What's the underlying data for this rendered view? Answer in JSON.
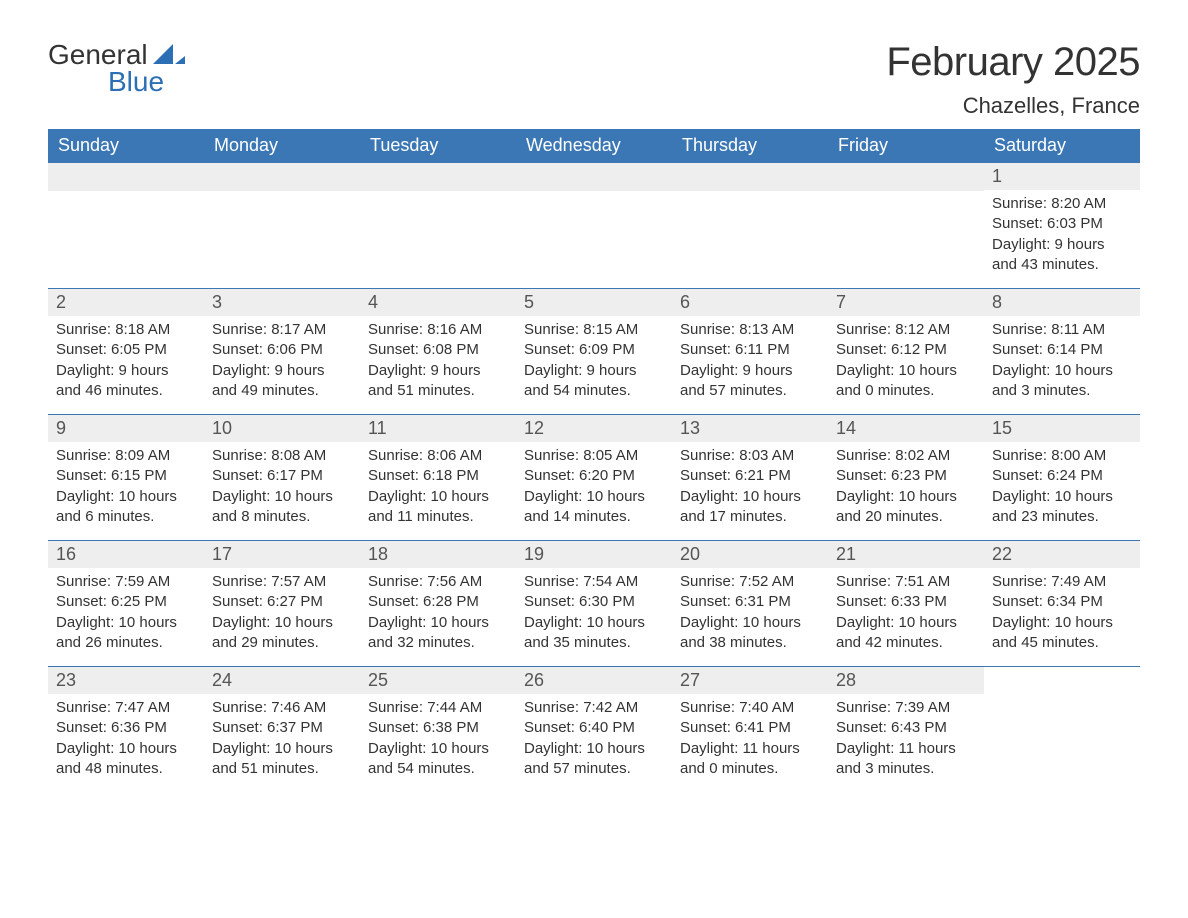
{
  "logo": {
    "general": "General",
    "blue": "Blue",
    "icon_color": "#2c6fb5"
  },
  "title": "February 2025",
  "location": "Chazelles, France",
  "colors": {
    "header_bg": "#3b77b5",
    "header_text": "#ffffff",
    "daynum_bg": "#eeeeee",
    "border": "#3b77b5",
    "text": "#333333",
    "background": "#ffffff"
  },
  "typography": {
    "title_fontsize": 40,
    "location_fontsize": 22,
    "header_fontsize": 18,
    "daynum_fontsize": 18,
    "body_fontsize": 15,
    "font_family": "Arial"
  },
  "weekdays": [
    "Sunday",
    "Monday",
    "Tuesday",
    "Wednesday",
    "Thursday",
    "Friday",
    "Saturday"
  ],
  "leading_blanks": 6,
  "days": [
    {
      "n": 1,
      "sunrise": "8:20 AM",
      "sunset": "6:03 PM",
      "daylight": "9 hours and 43 minutes."
    },
    {
      "n": 2,
      "sunrise": "8:18 AM",
      "sunset": "6:05 PM",
      "daylight": "9 hours and 46 minutes."
    },
    {
      "n": 3,
      "sunrise": "8:17 AM",
      "sunset": "6:06 PM",
      "daylight": "9 hours and 49 minutes."
    },
    {
      "n": 4,
      "sunrise": "8:16 AM",
      "sunset": "6:08 PM",
      "daylight": "9 hours and 51 minutes."
    },
    {
      "n": 5,
      "sunrise": "8:15 AM",
      "sunset": "6:09 PM",
      "daylight": "9 hours and 54 minutes."
    },
    {
      "n": 6,
      "sunrise": "8:13 AM",
      "sunset": "6:11 PM",
      "daylight": "9 hours and 57 minutes."
    },
    {
      "n": 7,
      "sunrise": "8:12 AM",
      "sunset": "6:12 PM",
      "daylight": "10 hours and 0 minutes."
    },
    {
      "n": 8,
      "sunrise": "8:11 AM",
      "sunset": "6:14 PM",
      "daylight": "10 hours and 3 minutes."
    },
    {
      "n": 9,
      "sunrise": "8:09 AM",
      "sunset": "6:15 PM",
      "daylight": "10 hours and 6 minutes."
    },
    {
      "n": 10,
      "sunrise": "8:08 AM",
      "sunset": "6:17 PM",
      "daylight": "10 hours and 8 minutes."
    },
    {
      "n": 11,
      "sunrise": "8:06 AM",
      "sunset": "6:18 PM",
      "daylight": "10 hours and 11 minutes."
    },
    {
      "n": 12,
      "sunrise": "8:05 AM",
      "sunset": "6:20 PM",
      "daylight": "10 hours and 14 minutes."
    },
    {
      "n": 13,
      "sunrise": "8:03 AM",
      "sunset": "6:21 PM",
      "daylight": "10 hours and 17 minutes."
    },
    {
      "n": 14,
      "sunrise": "8:02 AM",
      "sunset": "6:23 PM",
      "daylight": "10 hours and 20 minutes."
    },
    {
      "n": 15,
      "sunrise": "8:00 AM",
      "sunset": "6:24 PM",
      "daylight": "10 hours and 23 minutes."
    },
    {
      "n": 16,
      "sunrise": "7:59 AM",
      "sunset": "6:25 PM",
      "daylight": "10 hours and 26 minutes."
    },
    {
      "n": 17,
      "sunrise": "7:57 AM",
      "sunset": "6:27 PM",
      "daylight": "10 hours and 29 minutes."
    },
    {
      "n": 18,
      "sunrise": "7:56 AM",
      "sunset": "6:28 PM",
      "daylight": "10 hours and 32 minutes."
    },
    {
      "n": 19,
      "sunrise": "7:54 AM",
      "sunset": "6:30 PM",
      "daylight": "10 hours and 35 minutes."
    },
    {
      "n": 20,
      "sunrise": "7:52 AM",
      "sunset": "6:31 PM",
      "daylight": "10 hours and 38 minutes."
    },
    {
      "n": 21,
      "sunrise": "7:51 AM",
      "sunset": "6:33 PM",
      "daylight": "10 hours and 42 minutes."
    },
    {
      "n": 22,
      "sunrise": "7:49 AM",
      "sunset": "6:34 PM",
      "daylight": "10 hours and 45 minutes."
    },
    {
      "n": 23,
      "sunrise": "7:47 AM",
      "sunset": "6:36 PM",
      "daylight": "10 hours and 48 minutes."
    },
    {
      "n": 24,
      "sunrise": "7:46 AM",
      "sunset": "6:37 PM",
      "daylight": "10 hours and 51 minutes."
    },
    {
      "n": 25,
      "sunrise": "7:44 AM",
      "sunset": "6:38 PM",
      "daylight": "10 hours and 54 minutes."
    },
    {
      "n": 26,
      "sunrise": "7:42 AM",
      "sunset": "6:40 PM",
      "daylight": "10 hours and 57 minutes."
    },
    {
      "n": 27,
      "sunrise": "7:40 AM",
      "sunset": "6:41 PM",
      "daylight": "11 hours and 0 minutes."
    },
    {
      "n": 28,
      "sunrise": "7:39 AM",
      "sunset": "6:43 PM",
      "daylight": "11 hours and 3 minutes."
    }
  ],
  "labels": {
    "sunrise": "Sunrise: ",
    "sunset": "Sunset: ",
    "daylight": "Daylight: "
  }
}
